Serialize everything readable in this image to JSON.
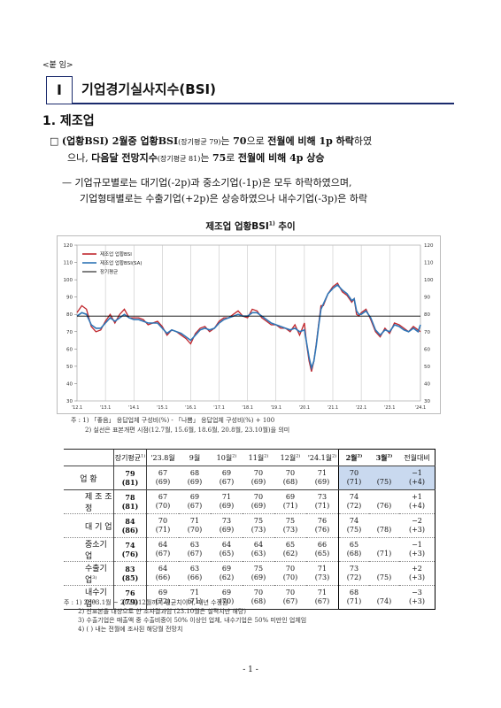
{
  "attachment_label": "<붙 임>",
  "section": {
    "number": "I",
    "title": "기업경기실사지수(BSI)"
  },
  "subsection": "1. 제조업",
  "bullet": {
    "mark": "□",
    "l1_a": "(업황BSI) 2월중 업황BSI",
    "l1_b": "(장기평균 79)",
    "l1_c": "는 ",
    "l1_d": "70",
    "l1_e": "으로 ",
    "l1_f": "전월에 비해 1p 하락",
    "l1_g": "하였",
    "l2_a": "으나, ",
    "l2_b": "다음달 전망지수",
    "l2_c": "(장기평균 81)",
    "l2_d": "는 ",
    "l2_e": "75",
    "l2_f": "로 ",
    "l2_g": "전월에 비해 4p 상승"
  },
  "dash": {
    "mark": "—",
    "line1": "기업규모별로는 대기업(-2p)과 중소기업(-1p)은 모두 하락하였으며,",
    "line2": "기업형태별로는 수출기업(+2p)은 상승하였으나 내수기업(-3p)은 하락"
  },
  "chart": {
    "title_main": "제조업 업황BSI",
    "title_sup": "1)",
    "title_tail": " 추이",
    "colors": {
      "original": "#c0272d",
      "sa": "#2e75b6",
      "avg": "#000000"
    }
  },
  "chart_data": {
    "type": "line",
    "xlabel": "",
    "ylabel": "",
    "ylim": [
      30,
      120
    ],
    "yticks": [
      30,
      40,
      50,
      60,
      70,
      80,
      90,
      100,
      110,
      120
    ],
    "xtick_labels": [
      "'12.1",
      "'13.1",
      "'14.1",
      "'15.1",
      "'16.1",
      "'17.1",
      "'18.1",
      "'19.1",
      "'20.1",
      "'21.1",
      "'22.1",
      "'23.1",
      "'24.1"
    ],
    "x_range": [
      0,
      145
    ],
    "avg_line": 79,
    "grid": false,
    "legend_position": "top-left",
    "vlines_x": [
      0,
      12,
      24,
      36,
      48,
      60,
      72,
      84,
      96,
      108,
      120,
      132,
      145
    ],
    "series": [
      {
        "name": "제조업 업황BSI",
        "key": "original",
        "x": [
          0,
          2,
          4,
          6,
          8,
          10,
          12,
          14,
          16,
          18,
          20,
          22,
          24,
          26,
          28,
          30,
          32,
          34,
          36,
          38,
          40,
          42,
          44,
          46,
          48,
          50,
          52,
          54,
          56,
          58,
          60,
          62,
          64,
          66,
          68,
          70,
          72,
          74,
          76,
          78,
          80,
          82,
          84,
          86,
          88,
          90,
          92,
          94,
          96,
          97,
          98,
          99,
          100,
          101,
          102,
          103,
          104,
          106,
          108,
          110,
          112,
          114,
          116,
          117,
          118,
          119,
          120,
          122,
          124,
          126,
          128,
          130,
          132,
          134,
          136,
          138,
          140,
          142,
          144,
          145
        ],
        "values": [
          81,
          85,
          83,
          73,
          70,
          71,
          76,
          80,
          75,
          80,
          83,
          78,
          78,
          78,
          77,
          74,
          75,
          76,
          73,
          68,
          71,
          70,
          68,
          66,
          63,
          69,
          72,
          73,
          70,
          72,
          76,
          78,
          78,
          80,
          82,
          79,
          78,
          83,
          82,
          78,
          76,
          74,
          74,
          72,
          72,
          70,
          74,
          68,
          75,
          62,
          53,
          47,
          53,
          63,
          74,
          85,
          85,
          92,
          96,
          98,
          93,
          91,
          87,
          89,
          80,
          79,
          81,
          83,
          77,
          70,
          67,
          72,
          69,
          75,
          74,
          72,
          70,
          73,
          71,
          70
        ]
      },
      {
        "name": "제조업 업황BSI(SA)",
        "key": "sa",
        "x": [
          0,
          2,
          4,
          6,
          8,
          10,
          12,
          14,
          16,
          18,
          20,
          22,
          24,
          26,
          28,
          30,
          32,
          34,
          36,
          38,
          40,
          42,
          44,
          46,
          48,
          50,
          52,
          54,
          56,
          58,
          60,
          62,
          64,
          66,
          68,
          70,
          72,
          74,
          76,
          78,
          80,
          82,
          84,
          86,
          88,
          90,
          92,
          94,
          96,
          97,
          98,
          99,
          100,
          101,
          102,
          103,
          104,
          106,
          108,
          110,
          112,
          114,
          116,
          117,
          118,
          119,
          120,
          122,
          124,
          126,
          128,
          130,
          132,
          134,
          136,
          138,
          140,
          142,
          144,
          145
        ],
        "values": [
          79,
          81,
          80,
          74,
          72,
          72,
          75,
          78,
          76,
          78,
          80,
          78,
          77,
          77,
          76,
          75,
          75,
          75,
          72,
          69,
          71,
          70,
          69,
          67,
          65,
          68,
          71,
          72,
          71,
          72,
          75,
          77,
          78,
          79,
          80,
          79,
          79,
          81,
          81,
          79,
          77,
          75,
          74,
          73,
          72,
          71,
          72,
          70,
          71,
          63,
          55,
          49,
          53,
          62,
          73,
          83,
          86,
          92,
          95,
          97,
          94,
          92,
          88,
          89,
          82,
          80,
          80,
          82,
          78,
          71,
          68,
          71,
          70,
          74,
          73,
          71,
          70,
          72,
          70,
          74
        ]
      },
      {
        "name": "장기평균",
        "key": "avg",
        "x": [
          0,
          145
        ],
        "values": [
          79,
          79
        ]
      }
    ]
  },
  "chart_notes": {
    "n1": "주 : 1) 「좋음」 응답업체 구성비(%) - 「나쁨」 응답업체 구성비(%) + 100",
    "n2": "2) 실선은 표본개편 시점(12.7월, 15.6월, 18.6월, 20.8월, 23.10월)을 의미"
  },
  "table": {
    "headers": [
      {
        "t": "장기평균",
        "s": "1)"
      },
      {
        "t": "'23.8월",
        "s": ""
      },
      {
        "t": "9월",
        "s": ""
      },
      {
        "t": "10월",
        "s": "2)"
      },
      {
        "t": "11월",
        "s": "2)"
      },
      {
        "t": "12월",
        "s": "2)"
      },
      {
        "t": "'24.1월",
        "s": "2)"
      },
      {
        "t": "2월",
        "s": "2)"
      },
      {
        "t": "3월",
        "s": "2)"
      },
      {
        "t": "전월대비",
        "s": ""
      }
    ],
    "rows": [
      {
        "label": "업 황",
        "sup": "",
        "group": "main",
        "v": [
          [
            "79",
            "(81)"
          ],
          [
            "67",
            "(69)"
          ],
          [
            "68",
            "(69)"
          ],
          [
            "69",
            "(67)"
          ],
          [
            "70",
            "(69)"
          ],
          [
            "70",
            "(68)"
          ],
          [
            "71",
            "(69)"
          ],
          [
            "70",
            "(71)"
          ],
          [
            "",
            "(75)"
          ],
          [
            "−1",
            "(+4)"
          ]
        ]
      },
      {
        "label": "제 조 조 정",
        "sup": "",
        "group": "sub",
        "v": [
          [
            "78",
            "(81)"
          ],
          [
            "67",
            "(70)"
          ],
          [
            "69",
            "(67)"
          ],
          [
            "71",
            "(69)"
          ],
          [
            "70",
            "(69)"
          ],
          [
            "69",
            "(71)"
          ],
          [
            "73",
            "(71)"
          ],
          [
            "74",
            "(72)"
          ],
          [
            "",
            "(76)"
          ],
          [
            "+1",
            "(+4)"
          ]
        ]
      },
      {
        "label": "대 기 업",
        "sup": "",
        "group": "sub",
        "v": [
          [
            "84",
            "(86)"
          ],
          [
            "70",
            "(71)"
          ],
          [
            "71",
            "(70)"
          ],
          [
            "73",
            "(69)"
          ],
          [
            "75",
            "(73)"
          ],
          [
            "75",
            "(73)"
          ],
          [
            "76",
            "(76)"
          ],
          [
            "74",
            "(75)"
          ],
          [
            "",
            "(78)"
          ],
          [
            "−2",
            "(+3)"
          ]
        ]
      },
      {
        "label": "중소기업",
        "sup": "",
        "group": "sub",
        "v": [
          [
            "74",
            "(76)"
          ],
          [
            "64",
            "(67)"
          ],
          [
            "63",
            "(67)"
          ],
          [
            "64",
            "(65)"
          ],
          [
            "64",
            "(63)"
          ],
          [
            "65",
            "(62)"
          ],
          [
            "66",
            "(65)"
          ],
          [
            "65",
            "(68)"
          ],
          [
            "",
            "(71)"
          ],
          [
            "−1",
            "(+3)"
          ]
        ]
      },
      {
        "label": "수출기업",
        "sup": "3)",
        "group": "sub",
        "v": [
          [
            "83",
            "(85)"
          ],
          [
            "64",
            "(66)"
          ],
          [
            "63",
            "(66)"
          ],
          [
            "69",
            "(62)"
          ],
          [
            "75",
            "(69)"
          ],
          [
            "70",
            "(70)"
          ],
          [
            "71",
            "(73)"
          ],
          [
            "73",
            "(72)"
          ],
          [
            "",
            "(75)"
          ],
          [
            "+2",
            "(+3)"
          ]
        ]
      },
      {
        "label": "내수기업",
        "sup": "3)",
        "group": "sub",
        "v": [
          [
            "76",
            "(79)"
          ],
          [
            "69",
            "(72)"
          ],
          [
            "71",
            "(71)"
          ],
          [
            "69",
            "(70)"
          ],
          [
            "70",
            "(68)"
          ],
          [
            "70",
            "(67)"
          ],
          [
            "71",
            "(67)"
          ],
          [
            "68",
            "(71)"
          ],
          [
            "",
            "(74)"
          ],
          [
            "−3",
            "(+3)"
          ]
        ]
      }
    ]
  },
  "table_notes": {
    "n1": "주 : 1) 2003.1월 ~ 2023.12월까지 평균치이며, 매년 수정됨",
    "n2": "2) 신표본을 대상으로 한 조사결과임 (23.10월은 실적치만 해당)",
    "n3": "3) 수출기업은 매출액 중 수출비중이 50% 이상인 업체, 내수기업은 50% 미만인 업체임",
    "n4": "4) (   ) 내는 전월에 조사된 해당월 전망치"
  },
  "page_number": "- 1 -"
}
